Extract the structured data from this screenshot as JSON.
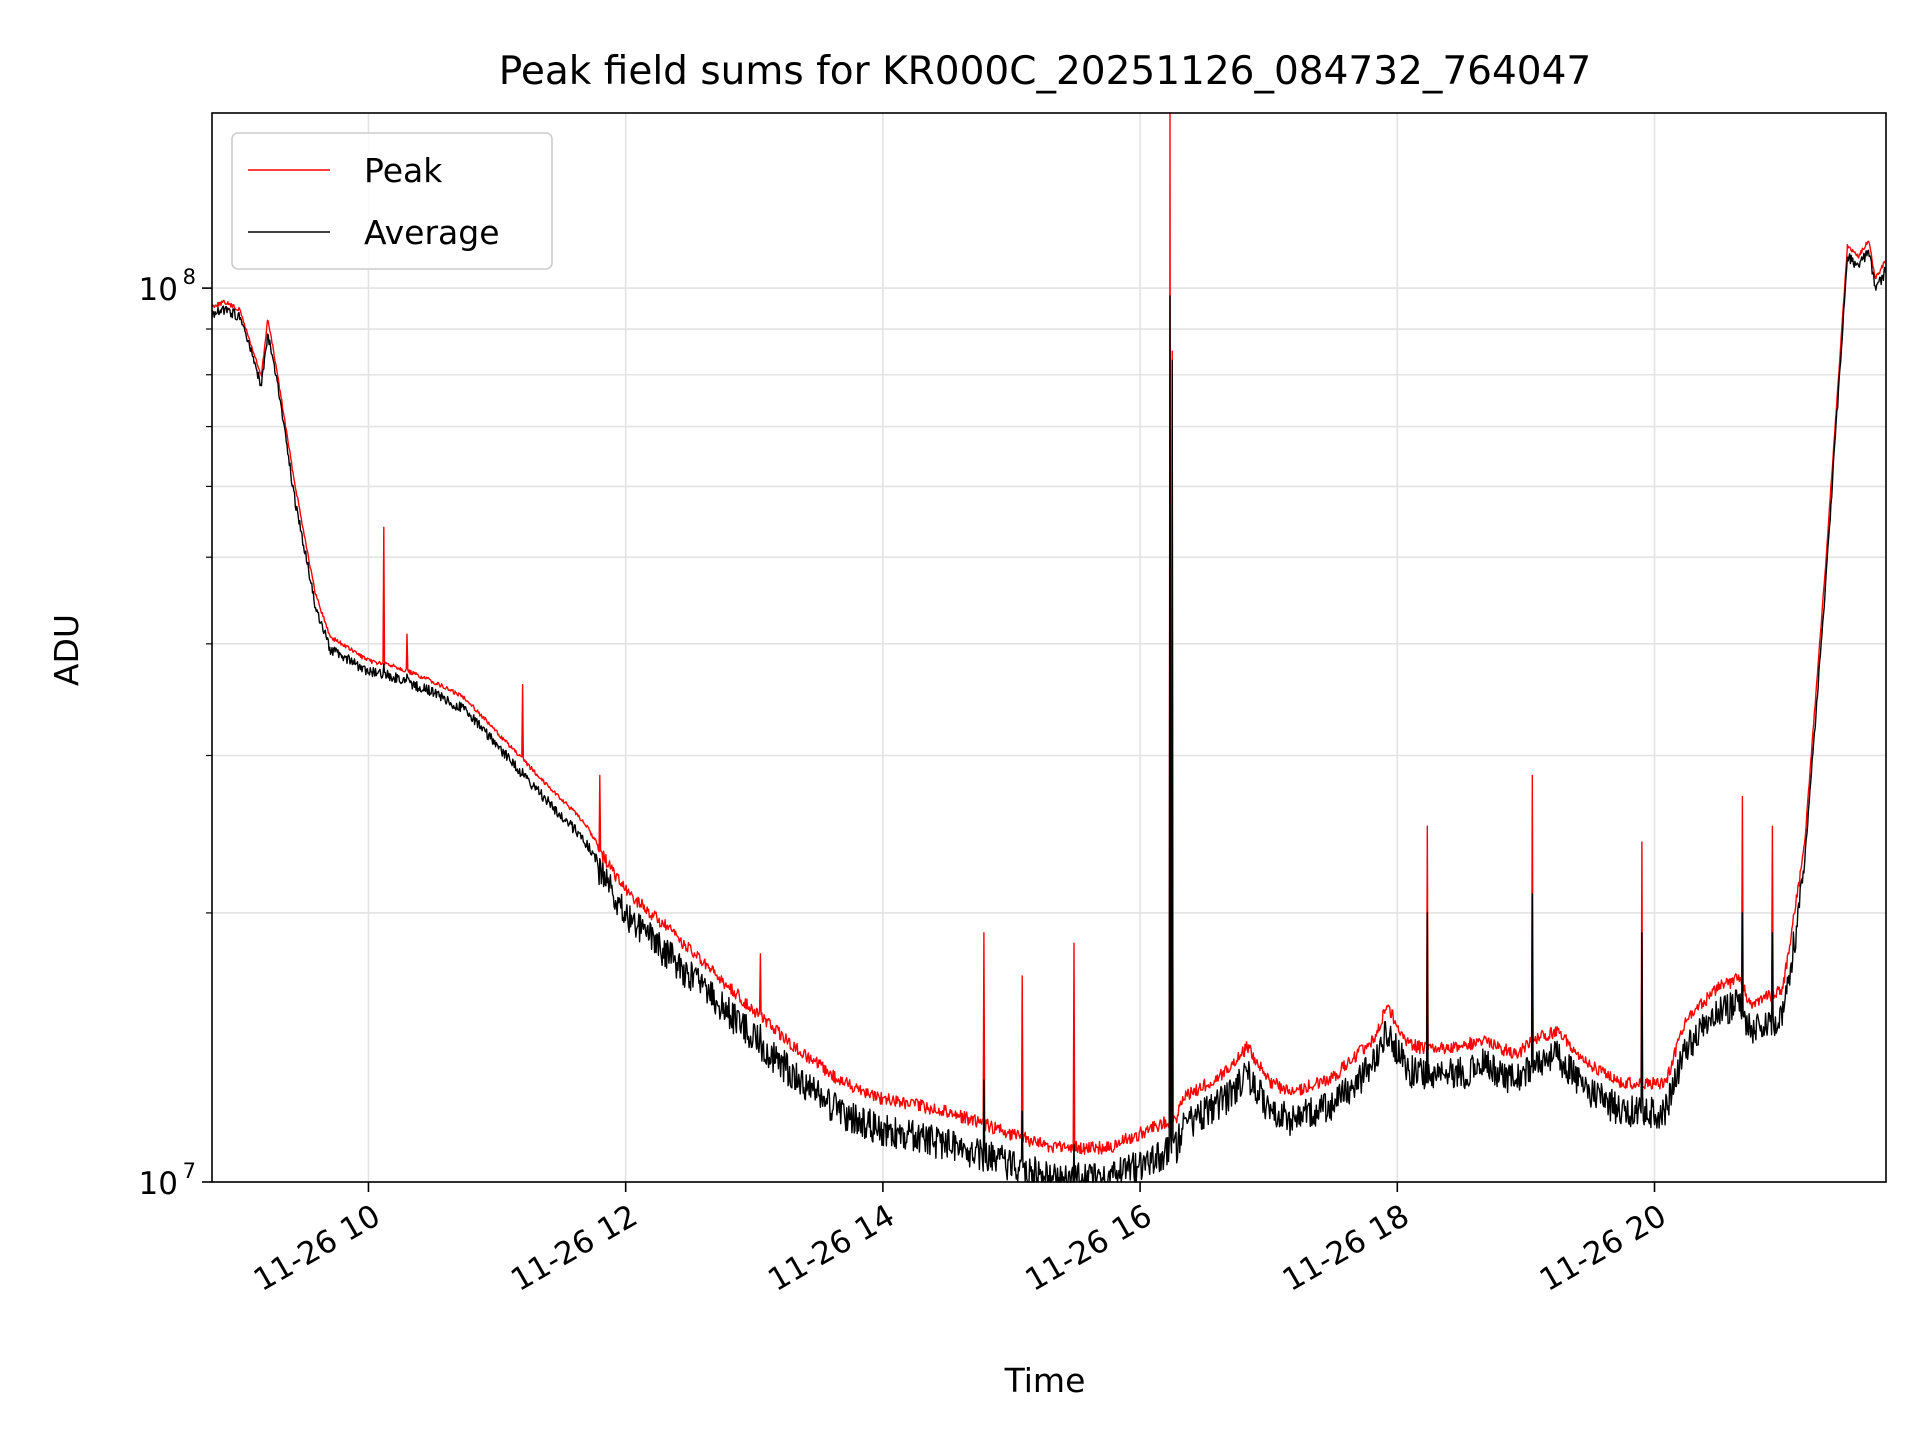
{
  "chart_data": {
    "type": "line",
    "title": "Peak field sums for KR000C_20251126_084732_764047",
    "xlabel": "Time",
    "ylabel": "ADU",
    "y_scale": "log",
    "ylim": [
      10000000,
      157000000
    ],
    "xlim": [
      "2025-11-26 08:47",
      "2025-11-26 21:48"
    ],
    "x_ticks": [
      {
        "value": "2025-11-26 10:00",
        "label": "11-26 10"
      },
      {
        "value": "2025-11-26 12:00",
        "label": "11-26 12"
      },
      {
        "value": "2025-11-26 14:00",
        "label": "11-26 14"
      },
      {
        "value": "2025-11-26 16:00",
        "label": "11-26 16"
      },
      {
        "value": "2025-11-26 18:00",
        "label": "11-26 18"
      },
      {
        "value": "2025-11-26 20:00",
        "label": "11-26 20"
      }
    ],
    "y_ticks": [
      {
        "value": 10000000,
        "label_base": "10",
        "label_exp": "7"
      },
      {
        "value": 100000000,
        "label_base": "10",
        "label_exp": "8"
      }
    ],
    "grid": true,
    "legend_position": "top-left",
    "series": [
      {
        "name": "Peak",
        "color": "#ff0000",
        "points": [
          [
            "2025-11-26 08:47",
            96000000
          ],
          [
            "2025-11-26 08:53",
            97000000
          ],
          [
            "2025-11-26 09:00",
            95000000
          ],
          [
            "2025-11-26 09:10",
            80000000
          ],
          [
            "2025-11-26 09:13",
            93000000
          ],
          [
            "2025-11-26 09:17",
            82000000
          ],
          [
            "2025-11-26 09:25",
            62000000
          ],
          [
            "2025-11-26 09:35",
            46000000
          ],
          [
            "2025-11-26 09:42",
            41000000
          ],
          [
            "2025-11-26 10:00",
            38500000
          ],
          [
            "2025-11-26 10:12",
            38000000
          ],
          [
            "2025-11-26 10:30",
            36500000
          ],
          [
            "2025-11-26 10:45",
            35000000
          ],
          [
            "2025-11-26 11:00",
            32000000
          ],
          [
            "2025-11-26 11:20",
            28500000
          ],
          [
            "2025-11-26 11:40",
            25500000
          ],
          [
            "2025-11-26 12:00",
            21500000
          ],
          [
            "2025-11-26 12:20",
            19500000
          ],
          [
            "2025-11-26 12:40",
            17500000
          ],
          [
            "2025-11-26 13:00",
            15800000
          ],
          [
            "2025-11-26 13:20",
            14300000
          ],
          [
            "2025-11-26 13:40",
            13200000
          ],
          [
            "2025-11-26 14:00",
            12600000
          ],
          [
            "2025-11-26 14:30",
            12200000
          ],
          [
            "2025-11-26 15:00",
            11500000
          ],
          [
            "2025-11-26 15:20",
            11100000
          ],
          [
            "2025-11-26 15:45",
            11100000
          ],
          [
            "2025-11-26 16:10",
            11800000
          ],
          [
            "2025-11-26 16:17",
            12000000
          ],
          [
            "2025-11-26 16:20",
            12600000
          ],
          [
            "2025-11-26 16:40",
            13500000
          ],
          [
            "2025-11-26 16:50",
            14400000
          ],
          [
            "2025-11-26 17:00",
            13200000
          ],
          [
            "2025-11-26 17:10",
            12800000
          ],
          [
            "2025-11-26 17:30",
            13300000
          ],
          [
            "2025-11-26 17:50",
            14800000
          ],
          [
            "2025-11-26 17:55",
            16000000
          ],
          [
            "2025-11-26 18:05",
            14500000
          ],
          [
            "2025-11-26 18:15",
            14300000
          ],
          [
            "2025-11-26 18:30",
            14400000
          ],
          [
            "2025-11-26 18:40",
            14700000
          ],
          [
            "2025-11-26 18:55",
            14100000
          ],
          [
            "2025-11-26 19:05",
            14700000
          ],
          [
            "2025-11-26 19:15",
            15000000
          ],
          [
            "2025-11-26 19:30",
            13700000
          ],
          [
            "2025-11-26 19:45",
            13100000
          ],
          [
            "2025-11-26 20:05",
            13100000
          ],
          [
            "2025-11-26 20:15",
            15500000
          ],
          [
            "2025-11-26 20:30",
            16800000
          ],
          [
            "2025-11-26 20:40",
            17200000
          ],
          [
            "2025-11-26 20:45",
            16000000
          ],
          [
            "2025-11-26 20:55",
            16500000
          ],
          [
            "2025-11-26 21:00",
            16800000
          ],
          [
            "2025-11-26 21:10",
            24000000
          ],
          [
            "2025-11-26 21:20",
            50000000
          ],
          [
            "2025-11-26 21:30",
            112000000
          ],
          [
            "2025-11-26 21:35",
            109000000
          ],
          [
            "2025-11-26 21:40",
            114000000
          ],
          [
            "2025-11-26 21:43",
            103000000
          ],
          [
            "2025-11-26 21:48",
            108000000
          ]
        ]
      },
      {
        "name": "Average",
        "color": "#000000",
        "points": [
          [
            "2025-11-26 08:47",
            95000000
          ],
          [
            "2025-11-26 08:53",
            96000000
          ],
          [
            "2025-11-26 09:00",
            94000000
          ],
          [
            "2025-11-26 09:10",
            79000000
          ],
          [
            "2025-11-26 09:13",
            90000000
          ],
          [
            "2025-11-26 09:17",
            81000000
          ],
          [
            "2025-11-26 09:25",
            60000000
          ],
          [
            "2025-11-26 09:35",
            45000000
          ],
          [
            "2025-11-26 09:42",
            40000000
          ],
          [
            "2025-11-26 10:00",
            37800000
          ],
          [
            "2025-11-26 10:12",
            37200000
          ],
          [
            "2025-11-26 10:30",
            35800000
          ],
          [
            "2025-11-26 10:45",
            34200000
          ],
          [
            "2025-11-26 11:00",
            31200000
          ],
          [
            "2025-11-26 11:20",
            27600000
          ],
          [
            "2025-11-26 11:40",
            24600000
          ],
          [
            "2025-11-26 12:00",
            20800000
          ],
          [
            "2025-11-26 12:20",
            18700000
          ],
          [
            "2025-11-26 12:40",
            16800000
          ],
          [
            "2025-11-26 13:00",
            15100000
          ],
          [
            "2025-11-26 13:20",
            13600000
          ],
          [
            "2025-11-26 13:40",
            12500000
          ],
          [
            "2025-11-26 14:00",
            11900000
          ],
          [
            "2025-11-26 14:30",
            11500000
          ],
          [
            "2025-11-26 15:00",
            10900000
          ],
          [
            "2025-11-26 15:20",
            10500000
          ],
          [
            "2025-11-26 15:45",
            10500000
          ],
          [
            "2025-11-26 16:10",
            11200000
          ],
          [
            "2025-11-26 16:17",
            11400000
          ],
          [
            "2025-11-26 16:20",
            12000000
          ],
          [
            "2025-11-26 16:40",
            12900000
          ],
          [
            "2025-11-26 16:50",
            13800000
          ],
          [
            "2025-11-26 17:00",
            12600000
          ],
          [
            "2025-11-26 17:10",
            12200000
          ],
          [
            "2025-11-26 17:30",
            12700000
          ],
          [
            "2025-11-26 17:50",
            14200000
          ],
          [
            "2025-11-26 17:55",
            15400000
          ],
          [
            "2025-11-26 18:05",
            13900000
          ],
          [
            "2025-11-26 18:15",
            13700000
          ],
          [
            "2025-11-26 18:30",
            13800000
          ],
          [
            "2025-11-26 18:40",
            14100000
          ],
          [
            "2025-11-26 18:55",
            13500000
          ],
          [
            "2025-11-26 19:05",
            14100000
          ],
          [
            "2025-11-26 19:15",
            14400000
          ],
          [
            "2025-11-26 19:30",
            13100000
          ],
          [
            "2025-11-26 19:45",
            12500000
          ],
          [
            "2025-11-26 20:05",
            12500000
          ],
          [
            "2025-11-26 20:15",
            14800000
          ],
          [
            "2025-11-26 20:30",
            16100000
          ],
          [
            "2025-11-26 20:40",
            16500000
          ],
          [
            "2025-11-26 20:45",
            15300000
          ],
          [
            "2025-11-26 20:55",
            15800000
          ],
          [
            "2025-11-26 21:00",
            16100000
          ],
          [
            "2025-11-26 21:10",
            23000000
          ],
          [
            "2025-11-26 21:20",
            48000000
          ],
          [
            "2025-11-26 21:30",
            110000000
          ],
          [
            "2025-11-26 21:35",
            107000000
          ],
          [
            "2025-11-26 21:40",
            112000000
          ],
          [
            "2025-11-26 21:43",
            101000000
          ],
          [
            "2025-11-26 21:48",
            106000000
          ]
        ]
      }
    ],
    "spikes": [
      {
        "time": "2025-11-26 10:07",
        "peak": 54000000,
        "average": 38000000
      },
      {
        "time": "2025-11-26 10:18",
        "peak": 41000000,
        "average": 37000000
      },
      {
        "time": "2025-11-26 11:12",
        "peak": 36000000,
        "average": 29000000
      },
      {
        "time": "2025-11-26 11:48",
        "peak": 28500000,
        "average": 23000000
      },
      {
        "time": "2025-11-26 13:03",
        "peak": 18000000,
        "average": 15000000
      },
      {
        "time": "2025-11-26 14:47",
        "peak": 19000000,
        "average": 13000000
      },
      {
        "time": "2025-11-26 15:05",
        "peak": 17000000,
        "average": 12000000
      },
      {
        "time": "2025-11-26 15:29",
        "peak": 18500000,
        "average": 11000000
      },
      {
        "time": "2025-11-26 16:14",
        "peak": 157000000,
        "average": 98000000
      },
      {
        "time": "2025-11-26 16:15",
        "peak": 85000000,
        "average": 83000000
      },
      {
        "time": "2025-11-26 18:14",
        "peak": 25000000,
        "average": 20000000
      },
      {
        "time": "2025-11-26 19:03",
        "peak": 28500000,
        "average": 21000000
      },
      {
        "time": "2025-11-26 19:54",
        "peak": 24000000,
        "average": 19000000
      },
      {
        "time": "2025-11-26 20:41",
        "peak": 27000000,
        "average": 20000000
      },
      {
        "time": "2025-11-26 20:55",
        "peak": 25000000,
        "average": 19000000
      }
    ]
  }
}
